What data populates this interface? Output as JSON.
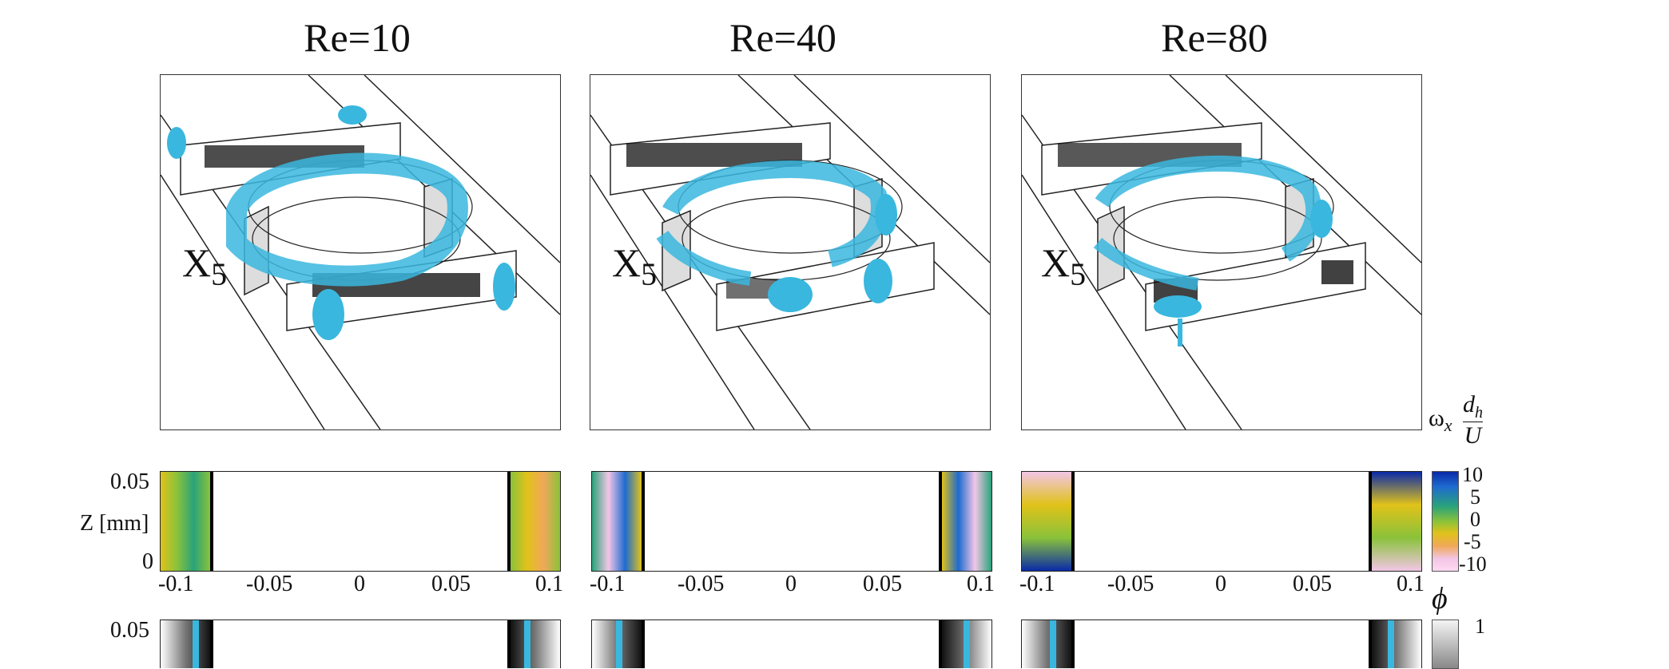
{
  "panels": [
    {
      "title": "Re=10",
      "label": "X",
      "label_sub": "5"
    },
    {
      "title": "Re=40",
      "label": "X",
      "label_sub": "5"
    },
    {
      "title": "Re=80",
      "label": "X",
      "label_sub": "5"
    }
  ],
  "slice_row": {
    "ylabel": "Z [mm]",
    "yticks": [
      "0.05",
      "0"
    ],
    "xticks": [
      "-0.1",
      "-0.05",
      "0",
      "0.05",
      "0.1"
    ]
  },
  "slice_row2": {
    "yticks": [
      "0.05"
    ]
  },
  "colorbar_vort": {
    "label_main": "ω",
    "label_sub": "x",
    "frac_num": "d",
    "frac_num_sub": "h",
    "frac_den": "U",
    "ticks": [
      "10",
      "5",
      "0",
      "-5",
      "-10"
    ],
    "colors": [
      "#0a2aa8",
      "#1e6ad0",
      "#2aa37a",
      "#8ac23a",
      "#e0c21a",
      "#f0a85a",
      "#f2c6e6",
      "#ffd9f2"
    ]
  },
  "colorbar_phi": {
    "label": "ϕ",
    "ticks": [
      "1"
    ]
  },
  "colors": {
    "iso": "#39b7de",
    "iso_dark": "#1f8fb8"
  }
}
